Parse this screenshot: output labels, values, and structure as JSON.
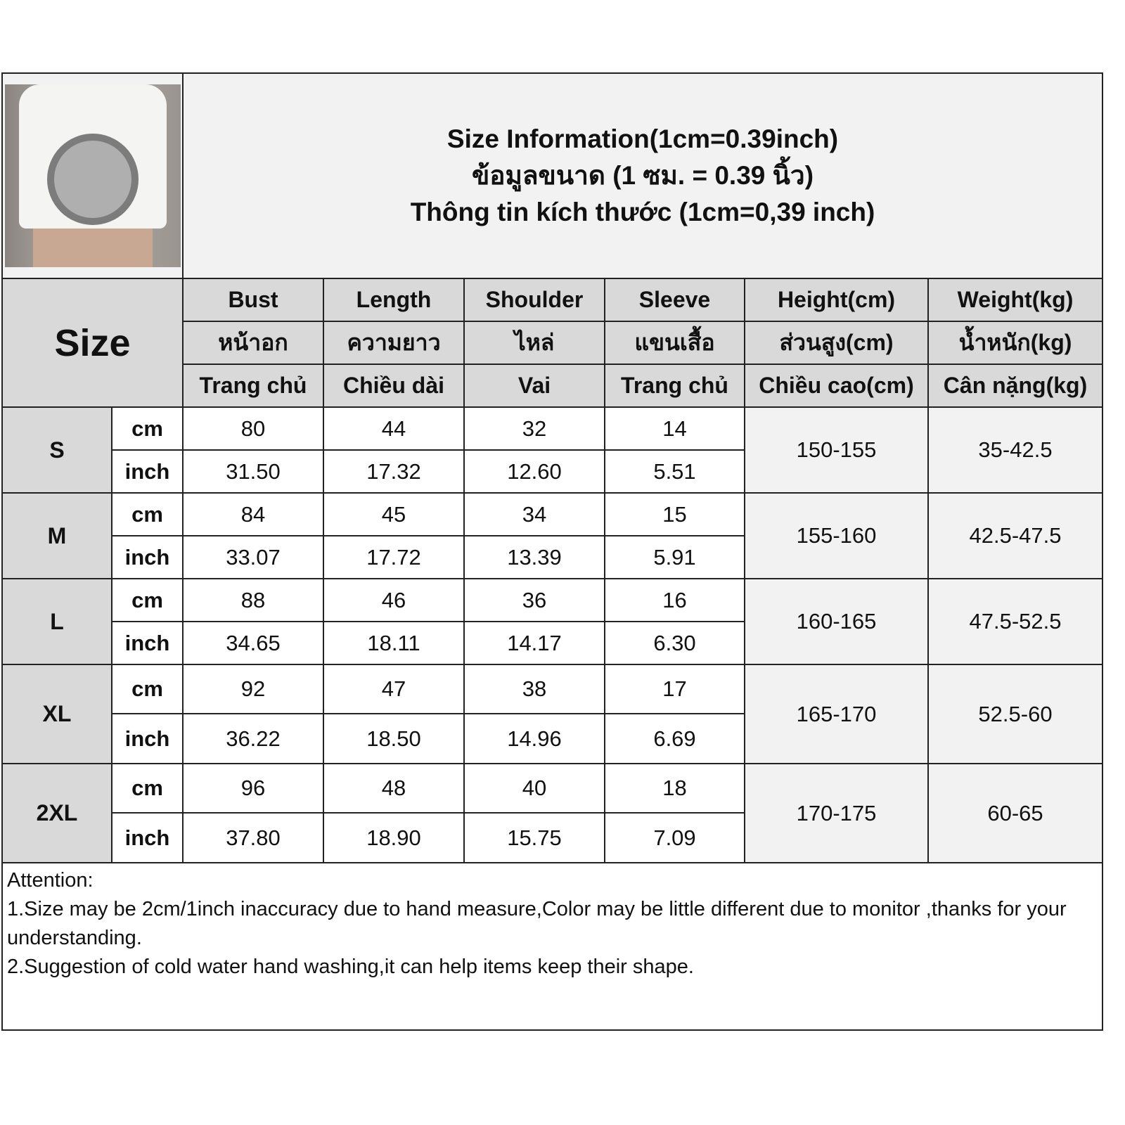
{
  "title_lines": [
    "Size Information(1cm=0.39inch)",
    "ข้อมูลขนาด (1 ซม. = 0.39 นิ้ว)",
    "Thông tin kích thước (1cm=0,39 inch)"
  ],
  "size_label": "Size",
  "headers": [
    {
      "en": "Bust",
      "th": "หน้าอก",
      "vi": "Trang chủ"
    },
    {
      "en": "Length",
      "th": "ความยาว",
      "vi": "Chiều dài"
    },
    {
      "en": "Shoulder",
      "th": "ไหล่",
      "vi": "Vai"
    },
    {
      "en": "Sleeve",
      "th": "แขนเสื้อ",
      "vi": "Trang chủ"
    },
    {
      "en": "Height(cm)",
      "th": "ส่วนสูง(cm)",
      "vi": "Chiều cao(cm)"
    },
    {
      "en": "Weight(kg)",
      "th": "น้ำหนัก(kg)",
      "vi": "Cân nặng(kg)"
    }
  ],
  "units": {
    "cm": "cm",
    "inch": "inch"
  },
  "rows": [
    {
      "size": "S",
      "cm": [
        "80",
        "44",
        "32",
        "14"
      ],
      "inch": [
        "31.50",
        "17.32",
        "12.60",
        "5.51"
      ],
      "height": "150-155",
      "weight": "35-42.5"
    },
    {
      "size": "M",
      "cm": [
        "84",
        "45",
        "34",
        "15"
      ],
      "inch": [
        "33.07",
        "17.72",
        "13.39",
        "5.91"
      ],
      "height": "155-160",
      "weight": "42.5-47.5"
    },
    {
      "size": "L",
      "cm": [
        "88",
        "46",
        "36",
        "16"
      ],
      "inch": [
        "34.65",
        "18.11",
        "14.17",
        "6.30"
      ],
      "height": "160-165",
      "weight": "47.5-52.5"
    },
    {
      "size": "XL",
      "cm": [
        "92",
        "47",
        "38",
        "17"
      ],
      "inch": [
        "36.22",
        "18.50",
        "14.96",
        "6.69"
      ],
      "height": "165-170",
      "weight": "52.5-60"
    },
    {
      "size": "2XL",
      "cm": [
        "96",
        "48",
        "40",
        "18"
      ],
      "inch": [
        "37.80",
        "18.90",
        "15.75",
        "7.09"
      ],
      "height": "170-175",
      "weight": "60-65"
    }
  ],
  "notes": [
    "Attention:",
    "1.Size may be 2cm/1inch inaccuracy due to hand measure,Color may be little different due to monitor ,thanks for your understanding.",
    "2.Suggestion of cold water hand washing,it can help items keep their shape."
  ]
}
